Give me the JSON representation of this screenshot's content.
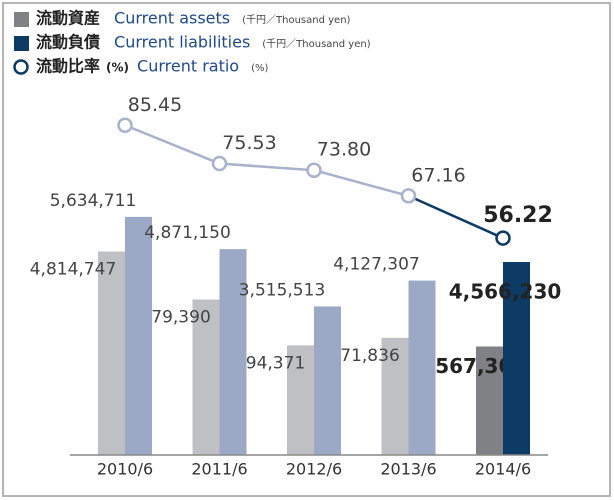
{
  "chart_data": {
    "type": "bar-line",
    "categories": [
      "2010/6",
      "2011/6",
      "2012/6",
      "2013/6",
      "2014/6"
    ],
    "ylim": [
      0,
      8400000
    ],
    "y2lim": [
      0,
      92
    ],
    "series": [
      {
        "name": "流動資産",
        "label_en": "Current assets",
        "unit": "(千円／Thousand yen)",
        "type": "bar",
        "color": "#bfc0c3",
        "highlight_color": "#808184",
        "values": [
          4814747,
          3679390,
          2594371,
          2771836,
          2567300
        ],
        "value_labels": [
          "4,814,747",
          "3,679,390",
          "2,594,371",
          "2,771,836",
          "2,567,300"
        ]
      },
      {
        "name": "流動負債",
        "label_en": "Current liabilities",
        "unit": "(千円／Thousand yen)",
        "type": "bar",
        "color": "#9ca9c6",
        "highlight_color": "#0d3b66",
        "values": [
          5634711,
          4871150,
          3515513,
          4127307,
          4566230
        ],
        "value_labels": [
          "5,634,711",
          "4,871,150",
          "3,515,513",
          "4,127,307",
          "4,566,230"
        ]
      },
      {
        "name": "流動比率",
        "name_unit": "(%)",
        "label_en": "Current ratio",
        "unit": "(%)",
        "type": "line",
        "axis": "y2",
        "color": "#a7b2cd",
        "highlight_color": "#0d3b66",
        "values": [
          85.45,
          75.53,
          73.8,
          67.16,
          56.22
        ],
        "value_labels": [
          "85.45",
          "75.53",
          "73.80",
          "67.16",
          "56.22"
        ]
      }
    ],
    "highlight_index": 4
  }
}
